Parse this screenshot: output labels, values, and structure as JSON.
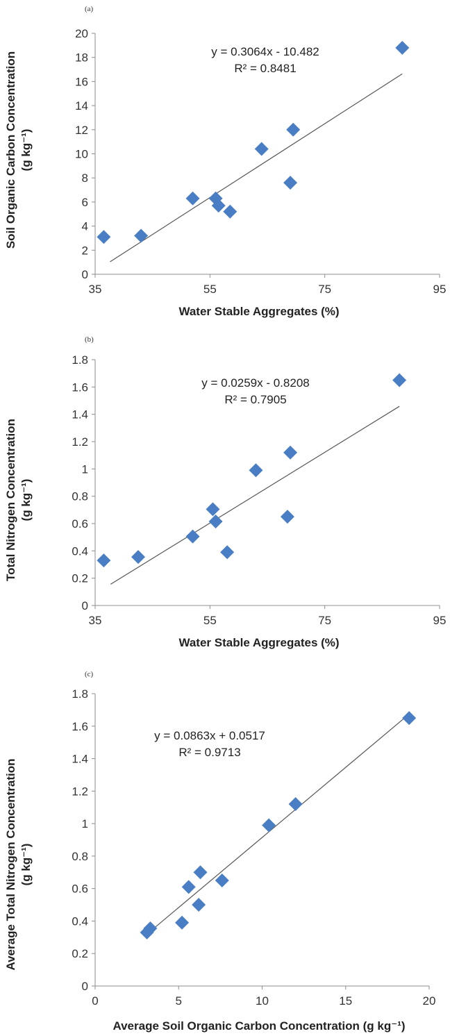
{
  "chart_data": [
    {
      "type": "scatter",
      "panel_label": "(a)",
      "xlabel": "Water Stable Aggregates (%)",
      "ylabel_line1": "Soil Organic Carbon Concentration",
      "ylabel_line2": "(g kg⁻¹)",
      "xlim": [
        35,
        95
      ],
      "ylim": [
        0,
        20
      ],
      "xticks": [
        35,
        55,
        75,
        95
      ],
      "yticks": [
        0,
        2,
        4,
        6,
        8,
        10,
        12,
        14,
        16,
        18,
        20
      ],
      "points": [
        {
          "x": 36.5,
          "y": 3.1
        },
        {
          "x": 43.0,
          "y": 3.2
        },
        {
          "x": 52.0,
          "y": 6.3
        },
        {
          "x": 56.0,
          "y": 6.3
        },
        {
          "x": 56.5,
          "y": 5.7
        },
        {
          "x": 58.5,
          "y": 5.2
        },
        {
          "x": 64.0,
          "y": 10.4
        },
        {
          "x": 69.0,
          "y": 7.6
        },
        {
          "x": 69.5,
          "y": 12.0
        },
        {
          "x": 88.5,
          "y": 18.8
        }
      ],
      "trendline": {
        "slope": 0.3064,
        "intercept": -10.482,
        "x_range": [
          37.6,
          88.5
        ]
      },
      "equation": "y = 0.3064x - 10.482",
      "r_squared": "R² = 0.8481"
    },
    {
      "type": "scatter",
      "panel_label": "(b)",
      "xlabel": "Water Stable Aggregates (%)",
      "ylabel_line1": "Total Nitrogen Concentration",
      "ylabel_line2": "(g kg⁻¹)",
      "xlim": [
        35,
        95
      ],
      "ylim": [
        0,
        1.8
      ],
      "xticks": [
        35,
        55,
        75,
        95
      ],
      "yticks": [
        0,
        0.2,
        0.4,
        0.6,
        0.8,
        1,
        1.2,
        1.4,
        1.6,
        1.8
      ],
      "points": [
        {
          "x": 36.5,
          "y": 0.33
        },
        {
          "x": 42.5,
          "y": 0.355
        },
        {
          "x": 52.0,
          "y": 0.505
        },
        {
          "x": 55.5,
          "y": 0.705
        },
        {
          "x": 56.0,
          "y": 0.615
        },
        {
          "x": 58.0,
          "y": 0.39
        },
        {
          "x": 63.0,
          "y": 0.99
        },
        {
          "x": 68.5,
          "y": 0.65
        },
        {
          "x": 69.0,
          "y": 1.12
        },
        {
          "x": 88.0,
          "y": 1.65
        }
      ],
      "trendline": {
        "slope": 0.0259,
        "intercept": -0.8208,
        "x_range": [
          37.7,
          88.0
        ]
      },
      "equation": "y = 0.0259x - 0.8208",
      "r_squared": "R² = 0.7905"
    },
    {
      "type": "scatter",
      "panel_label": "(c)",
      "xlabel": "Average Soil Organic Carbon Concentration (g kg⁻¹)",
      "ylabel_line1": "Average Total Nitrogen Concentration",
      "ylabel_line2": "(g kg⁻¹)",
      "xlim": [
        0,
        20
      ],
      "ylim": [
        0,
        1.8
      ],
      "xticks": [
        0,
        5,
        10,
        15,
        20
      ],
      "yticks": [
        0,
        0.2,
        0.4,
        0.6,
        0.8,
        1,
        1.2,
        1.4,
        1.6,
        1.8
      ],
      "points": [
        {
          "x": 3.1,
          "y": 0.33
        },
        {
          "x": 3.3,
          "y": 0.355
        },
        {
          "x": 5.2,
          "y": 0.39
        },
        {
          "x": 5.6,
          "y": 0.61
        },
        {
          "x": 6.2,
          "y": 0.5
        },
        {
          "x": 6.3,
          "y": 0.7
        },
        {
          "x": 7.6,
          "y": 0.65
        },
        {
          "x": 10.4,
          "y": 0.99
        },
        {
          "x": 12.0,
          "y": 1.12
        },
        {
          "x": 18.8,
          "y": 1.65
        }
      ],
      "trendline": {
        "slope": 0.0863,
        "intercept": 0.0517,
        "x_range": [
          3.1,
          18.8
        ]
      },
      "equation": "y = 0.0863x + 0.0517",
      "r_squared": "R² = 0.9713"
    }
  ],
  "colors": {
    "marker": "#4A7EC4",
    "trendline": "#555555",
    "axis": "#8C8C8C",
    "text": "#222222"
  },
  "marker_shape": "diamond"
}
